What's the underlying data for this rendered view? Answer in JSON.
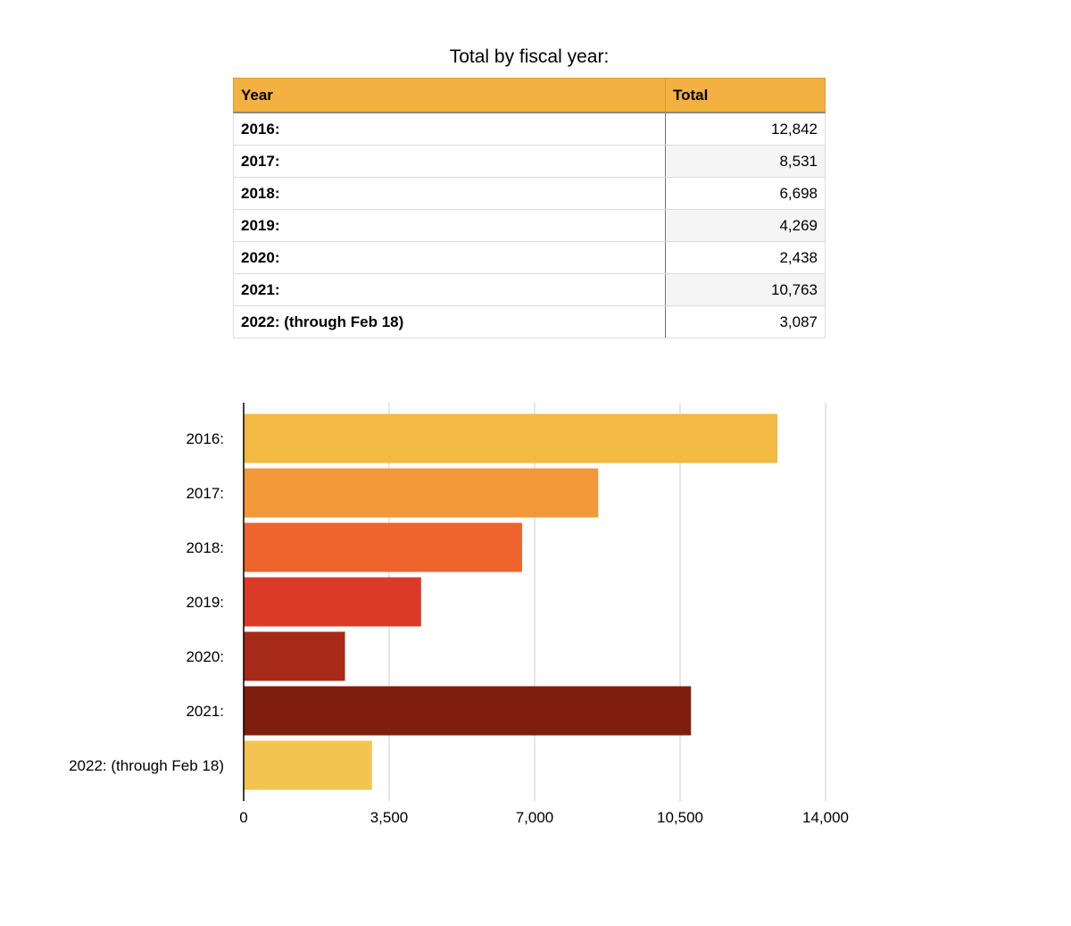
{
  "table": {
    "title": "Total by fiscal year:",
    "headers": [
      "Year",
      "Total"
    ],
    "rows": [
      {
        "year": "2016:",
        "total": "12,842"
      },
      {
        "year": "2017:",
        "total": "8,531"
      },
      {
        "year": "2018:",
        "total": "6,698"
      },
      {
        "year": "2019:",
        "total": "4,269"
      },
      {
        "year": "2020:",
        "total": "2,438"
      },
      {
        "year": "2021:",
        "total": "10,763"
      },
      {
        "year": "2022: (through Feb 18)",
        "total": "3,087"
      }
    ]
  },
  "chart_data": {
    "type": "bar",
    "orientation": "horizontal",
    "title": "",
    "xlabel": "",
    "ylabel": "",
    "categories": [
      "2016:",
      "2017:",
      "2018:",
      "2019:",
      "2020:",
      "2021:",
      "2022: (through Feb 18)"
    ],
    "values": [
      12842,
      8531,
      6698,
      4269,
      2438,
      10763,
      3087
    ],
    "xlim": [
      0,
      14000
    ],
    "xticks": [
      0,
      3500,
      7000,
      10500,
      14000
    ],
    "xtick_labels": [
      "0",
      "3,500",
      "7,000",
      "10,500",
      "14,000"
    ],
    "colors": [
      "#f2ba42",
      "#f29839",
      "#ef632c",
      "#db3a28",
      "#a72a18",
      "#7f1e0f",
      "#f3c44f"
    ],
    "grid": true,
    "legend": "none"
  }
}
